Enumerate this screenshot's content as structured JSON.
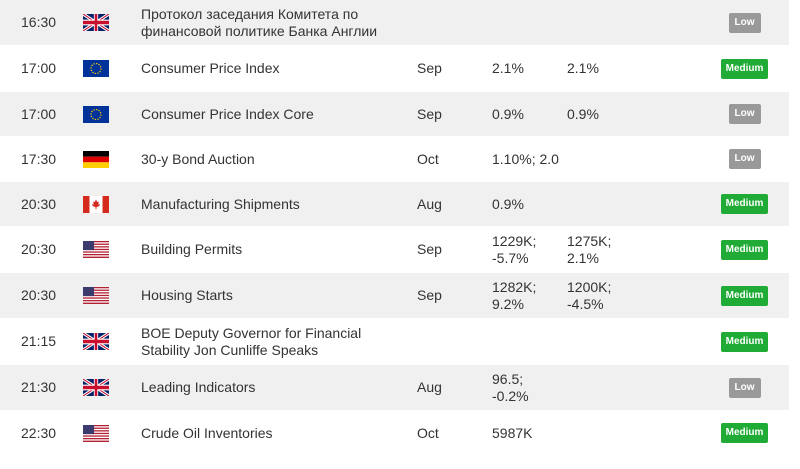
{
  "events": [
    {
      "time": "16:30",
      "country": "uk",
      "country_icon": "uk-flag-icon",
      "title": "Протокол заседания Комитета по финансовой политике Банка Англии",
      "period": "",
      "actual": "",
      "forecast": "",
      "importance": "Low"
    },
    {
      "time": "17:00",
      "country": "eu",
      "country_icon": "eu-flag-icon",
      "title": "Consumer Price Index",
      "period": "Sep",
      "actual": "2.1%",
      "forecast": "2.1%",
      "importance": "Medium"
    },
    {
      "time": "17:00",
      "country": "eu",
      "country_icon": "eu-flag-icon",
      "title": "Consumer Price Index Core",
      "period": "Sep",
      "actual": "0.9%",
      "forecast": "0.9%",
      "importance": "Low"
    },
    {
      "time": "17:30",
      "country": "de",
      "country_icon": "germany-flag-icon",
      "title": "30-y Bond Auction",
      "period": "Oct",
      "actual": "1.10%; 2.0",
      "forecast": "",
      "importance": "Low"
    },
    {
      "time": "20:30",
      "country": "ca",
      "country_icon": "canada-flag-icon",
      "title": "Manufacturing Shipments",
      "period": "Aug",
      "actual": "0.9%",
      "forecast": "",
      "importance": "Medium"
    },
    {
      "time": "20:30",
      "country": "us",
      "country_icon": "usa-flag-icon",
      "title": "Building Permits",
      "period": "Sep",
      "actual": "1229K; -5.7%",
      "forecast": "1275K; 2.1%",
      "importance": "Medium"
    },
    {
      "time": "20:30",
      "country": "us",
      "country_icon": "usa-flag-icon",
      "title": "Housing Starts",
      "period": "Sep",
      "actual": "1282K; 9.2%",
      "forecast": "1200K; -4.5%",
      "importance": "Medium"
    },
    {
      "time": "21:15",
      "country": "uk",
      "country_icon": "uk-flag-icon",
      "title": "BOE Deputy Governor for Financial Stability Jon Cunliffe Speaks",
      "period": "",
      "actual": "",
      "forecast": "",
      "importance": "Medium"
    },
    {
      "time": "21:30",
      "country": "uk",
      "country_icon": "uk-flag-icon",
      "title": "Leading Indicators",
      "period": "Aug",
      "actual": "96.5; -0.2%",
      "forecast": "",
      "importance": "Low"
    },
    {
      "time": "22:30",
      "country": "us",
      "country_icon": "usa-flag-icon",
      "title": "Crude Oil Inventories",
      "period": "Oct",
      "actual": "5987K",
      "forecast": "",
      "importance": "Medium"
    }
  ],
  "colors": {
    "row_alt": "#f0f0f0",
    "medium_badge": "#1fab35",
    "low_badge": "#999999"
  }
}
